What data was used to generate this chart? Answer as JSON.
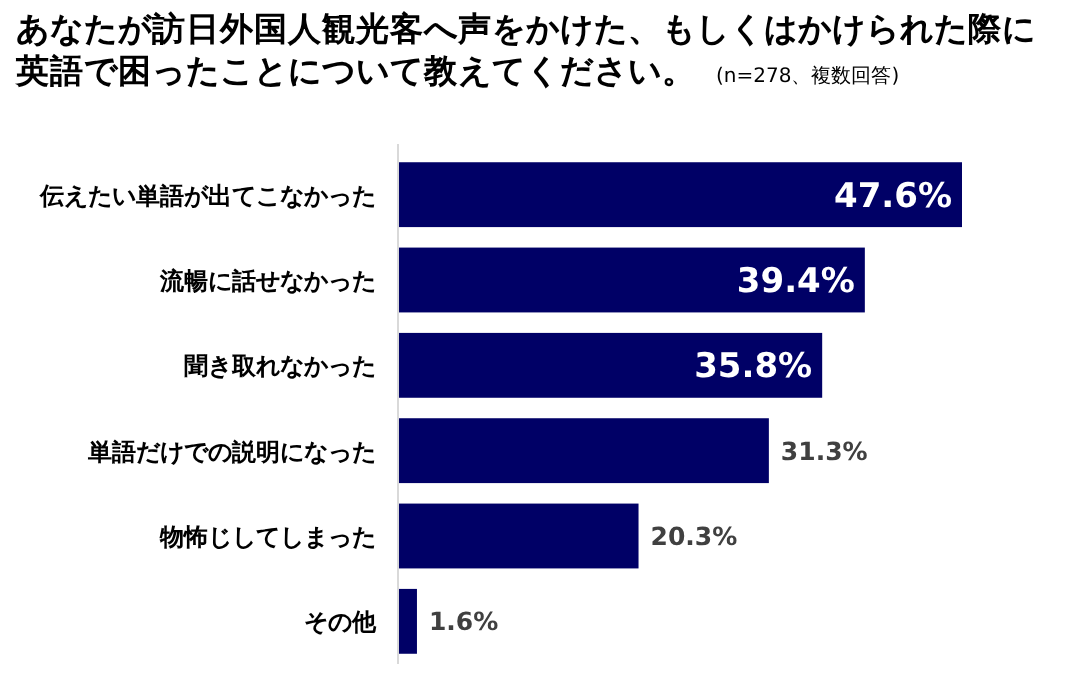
{
  "chart_data": {
    "type": "bar",
    "orientation": "horizontal",
    "title": "あなたが訪日外国人観光客へ声をかけた、もしくはかけられた際に英語で困ったことについて教えてください。",
    "subtitle": "(n=278、複数回答)",
    "categories": [
      "伝えたい単語が出てこなかった",
      "流暢に話せなかった",
      "聞き取れなかった",
      "単語だけでの説明になった",
      "物怖じしてしまった",
      "その他"
    ],
    "values": [
      47.6,
      39.4,
      35.8,
      31.3,
      20.3,
      1.6
    ],
    "value_labels": [
      "47.6%",
      "39.4%",
      "35.8%",
      "31.3%",
      "20.3%",
      "1.6%"
    ],
    "color": "#000066"
  }
}
